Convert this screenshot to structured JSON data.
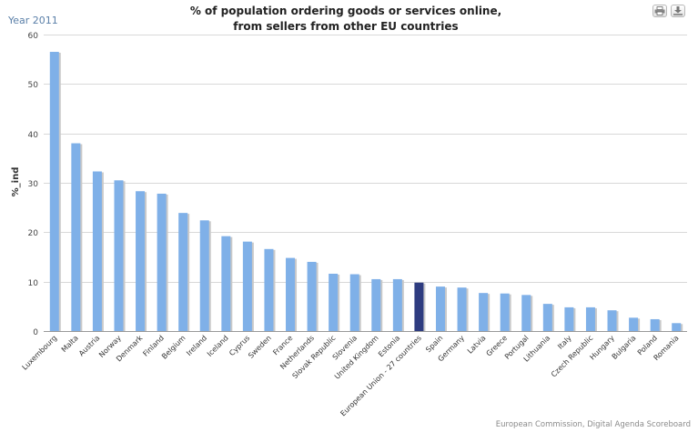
{
  "header": {
    "year_label": "Year 2011",
    "title_line1": "% of population ordering goods or services online,",
    "title_line2": "from sellers from other EU countries"
  },
  "toolbar": {
    "print_icon": "print-icon",
    "export_icon": "download-icon"
  },
  "footer": {
    "source": "European Commission, Digital Agenda Scoreboard"
  },
  "colors": {
    "bar": "#7fb0e8",
    "highlight_bar": "#2e3c80",
    "grid": "#d8d8d8"
  },
  "chart_data": {
    "type": "bar",
    "title": "% of population ordering goods or services online, from sellers from other EU countries",
    "xlabel": "",
    "ylabel": "%_ind",
    "ylim": [
      0,
      60
    ],
    "yticks": [
      0,
      10,
      20,
      30,
      40,
      50,
      60
    ],
    "grid": true,
    "legend": "none",
    "highlight": "European Union - 27 countries",
    "categories": [
      "Luxembourg",
      "Malta",
      "Austria",
      "Norway",
      "Denmark",
      "Finland",
      "Belgium",
      "Ireland",
      "Iceland",
      "Cyprus",
      "Sweden",
      "France",
      "Netherlands",
      "Slovak Republic",
      "Slovenia",
      "United Kingdom",
      "Estonia",
      "European Union - 27 countries",
      "Spain",
      "Germany",
      "Latvia",
      "Greece",
      "Portugal",
      "Lithuania",
      "Italy",
      "Czech Republic",
      "Hungary",
      "Bulgaria",
      "Poland",
      "Romania"
    ],
    "values": [
      56.5,
      38,
      32.3,
      30.5,
      28.3,
      27.8,
      23.9,
      22.4,
      19.2,
      18.1,
      16.6,
      14.8,
      14.0,
      11.6,
      11.5,
      10.5,
      10.5,
      9.8,
      9.0,
      8.8,
      7.7,
      7.6,
      7.3,
      5.5,
      4.8,
      4.8,
      4.2,
      2.7,
      2.4,
      1.6
    ]
  }
}
